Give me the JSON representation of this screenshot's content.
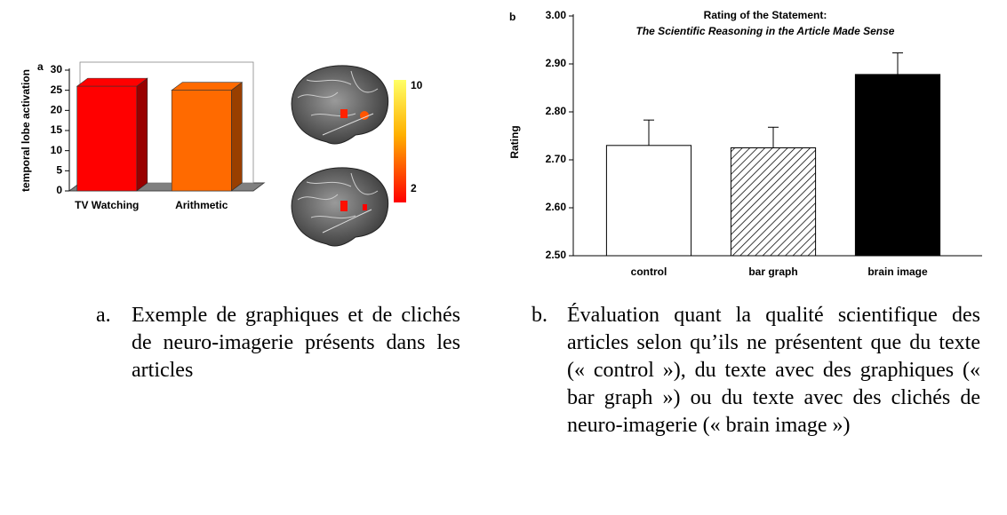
{
  "chart_data": [
    {
      "type": "bar",
      "panel": "a",
      "style_3d": true,
      "y_label": "temporal lobe activation",
      "categories": [
        "TV Watching",
        "Arithmetic"
      ],
      "values": [
        26,
        25
      ],
      "colors": [
        "#ff0000",
        "#ff6a00"
      ],
      "ylim": [
        0,
        30
      ],
      "yticks": [
        0,
        5,
        10,
        15,
        20,
        25,
        30
      ],
      "colorbar_ticks": [
        10,
        2
      ]
    },
    {
      "type": "bar",
      "panel": "b",
      "title": "Rating of the Statement:",
      "subtitle": "The Scientific Reasoning in the Article Made Sense",
      "y_label": "Rating",
      "categories": [
        "control",
        "bar graph",
        "brain image"
      ],
      "values": [
        2.73,
        2.725,
        2.878
      ],
      "errors": [
        0.053,
        0.043,
        0.045
      ],
      "colors": [
        "#ffffff",
        "#ffffff",
        "#000000"
      ],
      "hatch": [
        false,
        true,
        false
      ],
      "ylim": [
        2.5,
        3.0
      ],
      "yticks": [
        {
          "value": 2.5,
          "label": "2.50"
        },
        {
          "value": 2.6,
          "label": "2.60"
        },
        {
          "value": 2.7,
          "label": "2.70"
        },
        {
          "value": 2.8,
          "label": "2.80"
        },
        {
          "value": 2.9,
          "label": "2.90"
        },
        {
          "value": 3.0,
          "label": "3.00"
        }
      ]
    }
  ],
  "captions": [
    {
      "label": "a.",
      "text": "Exemple de graphiques et de clichés de neuro-imagerie présents dans les articles"
    },
    {
      "label": "b.",
      "text": "Évaluation quant la qualité scientifique des articles selon qu’ils ne présentent que du texte (« control »), du texte avec des graphiques (« bar graph ») ou du texte avec des clichés de neuro-imagerie (« brain image »)"
    }
  ]
}
